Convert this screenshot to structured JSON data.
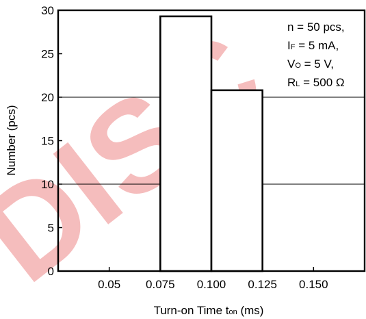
{
  "watermark": "DISC",
  "chart_data": {
    "type": "bar",
    "title": "",
    "xlabel_main": "Turn-on Time  t",
    "xlabel_sub": "on",
    "xlabel_unit": " (ms)",
    "ylabel": "Number  (pcs)",
    "xlim": [
      0.025,
      0.175
    ],
    "ylim": [
      0,
      30
    ],
    "x_ticks": [
      {
        "value": 0.05,
        "label": "0.05"
      },
      {
        "value": 0.075,
        "label": "0.075"
      },
      {
        "value": 0.1,
        "label": "0.100"
      },
      {
        "value": 0.125,
        "label": "0.125"
      },
      {
        "value": 0.15,
        "label": "0.150"
      }
    ],
    "y_ticks": [
      0,
      5,
      10,
      15,
      20,
      25,
      30
    ],
    "grid_y": [
      10,
      20
    ],
    "bins": [
      {
        "x0": 0.075,
        "x1": 0.1,
        "value": 29.3
      },
      {
        "x0": 0.1,
        "x1": 0.125,
        "value": 20.8
      }
    ],
    "conditions": [
      {
        "main": "n = 50 pcs,",
        "sym": "",
        "sub": "",
        "rest": ""
      },
      {
        "main": "",
        "sym": "I",
        "sub": "F",
        "rest": " = 5 mA,"
      },
      {
        "main": "",
        "sym": "V",
        "sub": "O",
        "rest": " = 5 V,"
      },
      {
        "main": "",
        "sym": "R",
        "sub": "L",
        "rest": " = 500 Ω"
      }
    ]
  }
}
